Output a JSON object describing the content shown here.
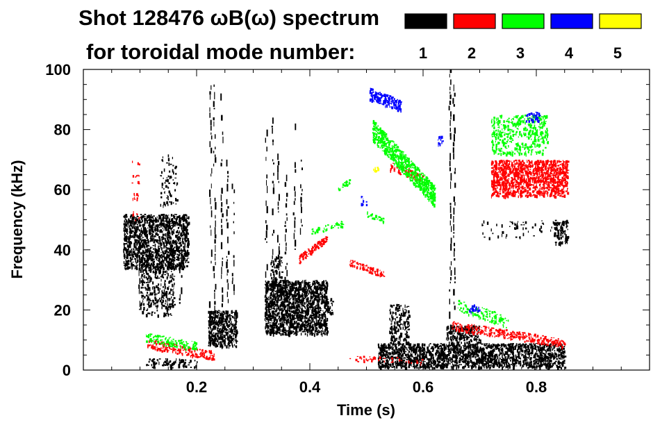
{
  "chart_data": {
    "type": "scatter",
    "title_line1": "Shot 128476 ωB(ω) spectrum",
    "title_line2": "for toroidal mode number:",
    "xlabel": "Time (s)",
    "ylabel": "Frequency (kHz)",
    "xlim": [
      0.0,
      1.0
    ],
    "ylim": [
      0,
      100
    ],
    "x_ticks": [
      0.2,
      0.4,
      0.6,
      0.8
    ],
    "x_tick_labels": [
      "0.2",
      "0.4",
      "0.6",
      "0.8"
    ],
    "y_ticks": [
      0,
      20,
      40,
      60,
      80,
      100
    ],
    "y_tick_labels": [
      "0",
      "20",
      "40",
      "60",
      "80",
      "100"
    ],
    "legend": [
      {
        "label": "1",
        "color": "#000000"
      },
      {
        "label": "2",
        "color": "#ff0000"
      },
      {
        "label": "3",
        "color": "#00ff00"
      },
      {
        "label": "4",
        "color": "#0000ff"
      },
      {
        "label": "5",
        "color": "#ffff00"
      }
    ],
    "series": [
      {
        "name": "n=1",
        "color": "#000000",
        "features": [
          {
            "kind": "blob",
            "t": [
              0.07,
              0.185
            ],
            "f": [
              34,
              52
            ],
            "density": 0.55
          },
          {
            "kind": "blob",
            "t": [
              0.1,
              0.16
            ],
            "f": [
              18,
              40
            ],
            "density": 0.25
          },
          {
            "kind": "blob",
            "t": [
              0.135,
              0.165
            ],
            "f": [
              55,
              72
            ],
            "density": 0.12
          },
          {
            "kind": "blob",
            "t": [
              0.22,
              0.27
            ],
            "f": [
              8,
              20
            ],
            "density": 0.6
          },
          {
            "kind": "blob",
            "t": [
              0.32,
              0.43
            ],
            "f": [
              12,
              30
            ],
            "density": 0.7
          },
          {
            "kind": "blob",
            "t": [
              0.43,
              0.44
            ],
            "f": [
              19,
              24
            ],
            "density": 0.5
          },
          {
            "kind": "blob",
            "t": [
              0.33,
              0.35
            ],
            "f": [
              28,
              38
            ],
            "density": 0.35
          },
          {
            "kind": "blob",
            "t": [
              0.52,
              0.85
            ],
            "f": [
              1,
              9
            ],
            "density": 0.6
          },
          {
            "kind": "blob",
            "t": [
              0.54,
              0.575
            ],
            "f": [
              9,
              22
            ],
            "density": 0.35
          },
          {
            "kind": "blob",
            "t": [
              0.64,
              0.7
            ],
            "f": [
              9,
              15
            ],
            "density": 0.45
          },
          {
            "kind": "blob",
            "t": [
              0.11,
              0.2
            ],
            "f": [
              1,
              4
            ],
            "density": 0.25
          },
          {
            "kind": "blob",
            "t": [
              0.83,
              0.855
            ],
            "f": [
              42,
              50
            ],
            "density": 0.5
          },
          {
            "kind": "blob",
            "t": [
              0.7,
              0.84
            ],
            "f": [
              44,
              50
            ],
            "density": 0.06
          },
          {
            "kind": "streak",
            "t": 0.225,
            "f": [
              8,
              100
            ]
          },
          {
            "kind": "streak",
            "t": 0.232,
            "f": [
              10,
              95
            ]
          },
          {
            "kind": "streak",
            "t": 0.245,
            "f": [
              15,
              92
            ]
          },
          {
            "kind": "streak",
            "t": 0.255,
            "f": [
              20,
              70
            ]
          },
          {
            "kind": "streak",
            "t": 0.265,
            "f": [
              25,
              62
            ]
          },
          {
            "kind": "streak",
            "t": 0.323,
            "f": [
              20,
              80
            ]
          },
          {
            "kind": "streak",
            "t": 0.335,
            "f": [
              15,
              84
            ]
          },
          {
            "kind": "streak",
            "t": 0.345,
            "f": [
              22,
              72
            ]
          },
          {
            "kind": "streak",
            "t": 0.358,
            "f": [
              25,
              65
            ]
          },
          {
            "kind": "streak",
            "t": 0.373,
            "f": [
              40,
              82
            ]
          },
          {
            "kind": "streak",
            "t": 0.385,
            "f": [
              45,
              70
            ]
          },
          {
            "kind": "streak",
            "t": 0.648,
            "f": [
              8,
              100
            ]
          },
          {
            "kind": "streak",
            "t": 0.655,
            "f": [
              20,
              95
            ]
          },
          {
            "kind": "streak",
            "t": 0.172,
            "f": [
              22,
              50
            ]
          },
          {
            "kind": "streak",
            "t": 0.1,
            "f": [
              20,
              38
            ]
          }
        ]
      },
      {
        "name": "n=2",
        "color": "#ff0000",
        "features": [
          {
            "kind": "blob",
            "t": [
              0.72,
              0.855
            ],
            "f": [
              58,
              70
            ],
            "density": 0.6
          },
          {
            "kind": "band",
            "t": [
              0.38,
              0.43
            ],
            "f0": 37,
            "f1": 44,
            "width": 2.5,
            "density": 0.5
          },
          {
            "kind": "band",
            "t": [
              0.47,
              0.53
            ],
            "f0": 36,
            "f1": 32,
            "width": 2,
            "density": 0.35
          },
          {
            "kind": "band",
            "t": [
              0.54,
              0.6
            ],
            "f0": 68,
            "f1": 64,
            "width": 3,
            "density": 0.25
          },
          {
            "kind": "band",
            "t": [
              0.11,
              0.23
            ],
            "f0": 9,
            "f1": 5,
            "width": 3,
            "density": 0.3
          },
          {
            "kind": "band",
            "t": [
              0.65,
              0.85
            ],
            "f0": 15,
            "f1": 9,
            "width": 3,
            "density": 0.3
          },
          {
            "kind": "band",
            "t": [
              0.47,
              0.6
            ],
            "f0": 4,
            "f1": 3,
            "width": 2,
            "density": 0.1
          },
          {
            "kind": "blob",
            "t": [
              0.085,
              0.1
            ],
            "f": [
              50,
              70
            ],
            "density": 0.08
          }
        ]
      },
      {
        "name": "n=3",
        "color": "#00ff00",
        "features": [
          {
            "kind": "band",
            "t": [
              0.51,
              0.62
            ],
            "f0": 80,
            "f1": 58,
            "width": 7,
            "density": 0.55
          },
          {
            "kind": "blob",
            "t": [
              0.72,
              0.82
            ],
            "f": [
              72,
              85
            ],
            "density": 0.28
          },
          {
            "kind": "band",
            "t": [
              0.4,
              0.46
            ],
            "f0": 46,
            "f1": 49,
            "width": 2,
            "density": 0.25
          },
          {
            "kind": "band",
            "t": [
              0.45,
              0.47
            ],
            "f0": 60,
            "f1": 63,
            "width": 2,
            "density": 0.4
          },
          {
            "kind": "band",
            "t": [
              0.5,
              0.53
            ],
            "f0": 52,
            "f1": 50,
            "width": 2,
            "density": 0.25
          },
          {
            "kind": "band",
            "t": [
              0.11,
              0.2
            ],
            "f0": 11,
            "f1": 8,
            "width": 3,
            "density": 0.3
          },
          {
            "kind": "band",
            "t": [
              0.66,
              0.75
            ],
            "f0": 22,
            "f1": 16,
            "width": 4,
            "density": 0.2
          }
        ]
      },
      {
        "name": "n=4",
        "color": "#0000ff",
        "features": [
          {
            "kind": "band",
            "t": [
              0.505,
              0.56
            ],
            "f0": 92,
            "f1": 88,
            "width": 4,
            "density": 0.5
          },
          {
            "kind": "blob",
            "t": [
              0.78,
              0.805
            ],
            "f": [
              83,
              86
            ],
            "density": 0.4
          },
          {
            "kind": "blob",
            "t": [
              0.625,
              0.635
            ],
            "f": [
              75,
              78
            ],
            "density": 0.3
          },
          {
            "kind": "blob",
            "t": [
              0.49,
              0.5
            ],
            "f": [
              55,
              58
            ],
            "density": 0.3
          },
          {
            "kind": "blob",
            "t": [
              0.68,
              0.7
            ],
            "f": [
              19,
              22
            ],
            "density": 0.3
          }
        ]
      },
      {
        "name": "n=5",
        "color": "#ffff00",
        "features": [
          {
            "kind": "blob",
            "t": [
              0.51,
              0.52
            ],
            "f": [
              66,
              68
            ],
            "density": 0.3
          }
        ]
      }
    ]
  }
}
